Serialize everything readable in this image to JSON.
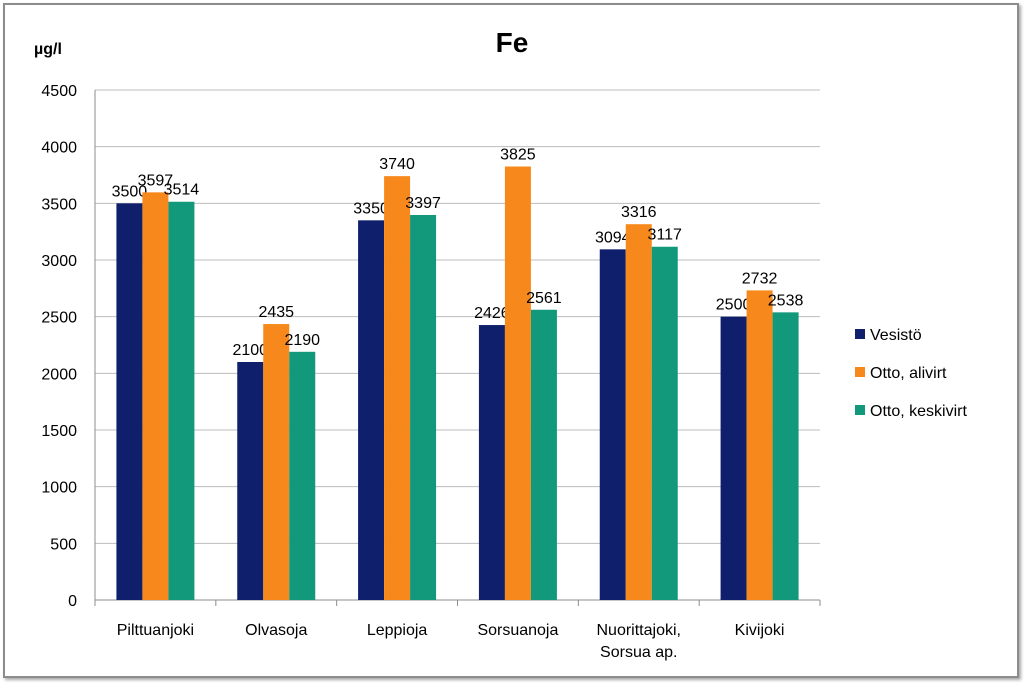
{
  "chart_data": {
    "type": "bar",
    "title": "Fe",
    "ylabel": "µg/l",
    "xlabel": "",
    "ylim": [
      0,
      4500
    ],
    "yticks": [
      "0",
      "500",
      "1000",
      "1500",
      "2000",
      "2500",
      "3000",
      "3500",
      "4000",
      "4500"
    ],
    "grid": true,
    "legend_position": "right",
    "categories": [
      [
        "Pilttuanjoki"
      ],
      [
        "Olvasoja"
      ],
      [
        "Leppioja"
      ],
      [
        "Sorsuanoja"
      ],
      [
        "Nuorittajoki,",
        "Sorsua ap."
      ],
      [
        "Kivijoki"
      ]
    ],
    "series": [
      {
        "name": "Vesistö",
        "color": "#0f1f6b",
        "values": [
          3500,
          2100,
          3350,
          2426,
          3094,
          2500
        ]
      },
      {
        "name": "Otto, alivirt",
        "color": "#f7891c",
        "values": [
          3597,
          2435,
          3740,
          3825,
          3316,
          2732
        ]
      },
      {
        "name": "Otto, keskivirt",
        "color": "#12987a",
        "values": [
          3514,
          2190,
          3397,
          2561,
          3117,
          2538
        ]
      }
    ]
  }
}
